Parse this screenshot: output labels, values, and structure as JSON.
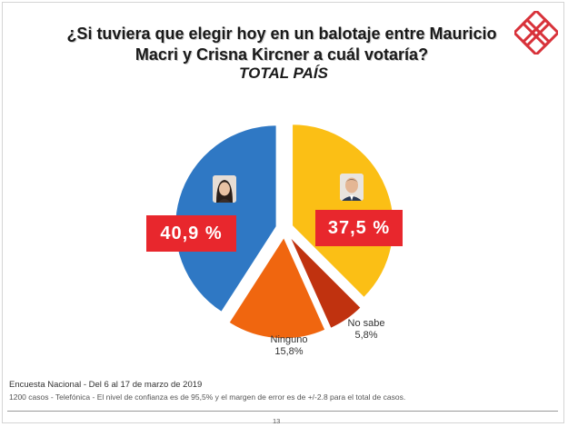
{
  "header": {
    "title": "¿Si tuviera que elegir hoy en un balotaje entre Mauricio Macri y Crisna Kircner a cuál votaría?",
    "subtitle": "TOTAL PAÍS"
  },
  "chart_data": {
    "type": "pie",
    "title": "¿Si tuviera que elegir hoy en un balotaje entre Mauricio Macri y Crisna Kircner a cuál votaría?",
    "subtitle": "TOTAL PAÍS",
    "unit": "%",
    "slices": [
      {
        "label": "",
        "value": 40.9,
        "display": "40,9 %",
        "color": "#2f78c4"
      },
      {
        "label": "",
        "value": 37.5,
        "display": "37,5 %",
        "color": "#fbbf15"
      },
      {
        "label": "No sabe",
        "value": 5.8,
        "display": "5,8%",
        "color": "#c0320f"
      },
      {
        "label": "Ninguno",
        "value": 15.8,
        "display": "15,8%",
        "color": "#f0660f"
      }
    ],
    "exploded": true,
    "legend": "none"
  },
  "footer": {
    "source": "Encuesta Nacional - Del 6 al 17 de marzo de 2019",
    "note": "1200 casos - Telefónica  - El nivel de confianza es de 95,5% y el margen de error es de +/-2.8 para el total de casos.",
    "page": "13"
  },
  "colors": {
    "highlight": "#e8272d",
    "logo": "#d8323a"
  },
  "icons": {
    "logo": "interlocking-squares-logo",
    "photo_left": "candidate-photo-woman",
    "photo_right": "candidate-photo-man"
  }
}
